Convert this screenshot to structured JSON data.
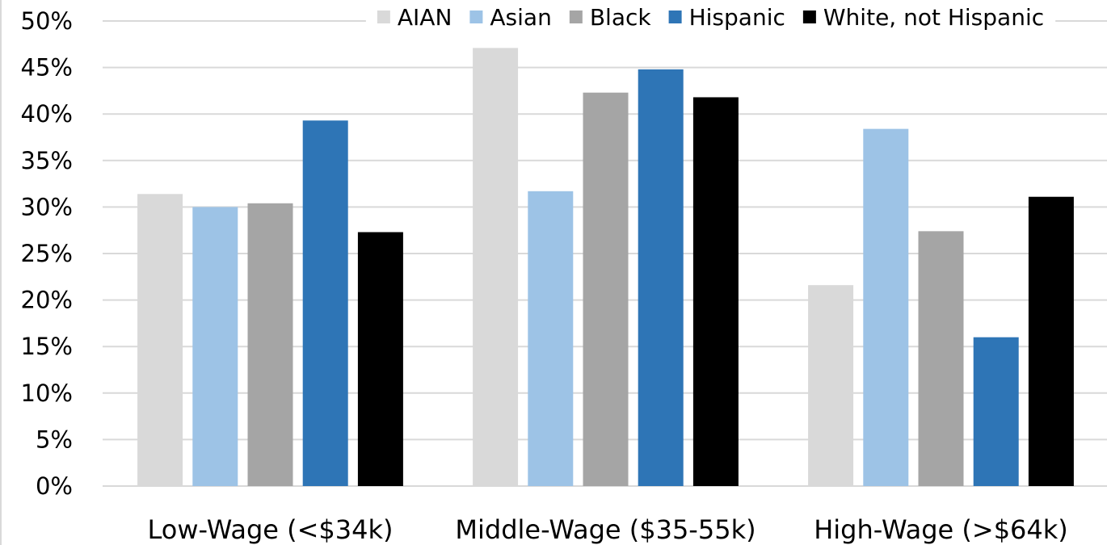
{
  "chart_data": {
    "type": "bar",
    "title": "",
    "xlabel": "",
    "ylabel": "",
    "categories": [
      "Low-Wage (<$34k)",
      "Middle-Wage ($35-55k)",
      "High-Wage (>$64k)"
    ],
    "series": [
      {
        "name": "AIAN",
        "values": [
          31.4,
          47.1,
          21.6
        ],
        "color": "#d9d9d9"
      },
      {
        "name": "Asian",
        "values": [
          30.0,
          31.7,
          38.4
        ],
        "color": "#9dc3e6"
      },
      {
        "name": "Black",
        "values": [
          30.4,
          42.3,
          27.4
        ],
        "color": "#a5a5a5"
      },
      {
        "name": "Hispanic",
        "values": [
          39.3,
          44.8,
          16.0
        ],
        "color": "#2e75b6"
      },
      {
        "name": "White, not Hispanic",
        "values": [
          27.3,
          41.8,
          31.1
        ],
        "color": "#000000"
      }
    ],
    "ylim": [
      0,
      50
    ],
    "yticks": [
      0,
      5,
      10,
      15,
      20,
      25,
      30,
      35,
      40,
      45,
      50
    ],
    "ytick_labels": [
      "0%",
      "5%",
      "10%",
      "15%",
      "20%",
      "25%",
      "30%",
      "35%",
      "40%",
      "45%",
      "50%"
    ],
    "grid": true,
    "legend_position": "top"
  }
}
